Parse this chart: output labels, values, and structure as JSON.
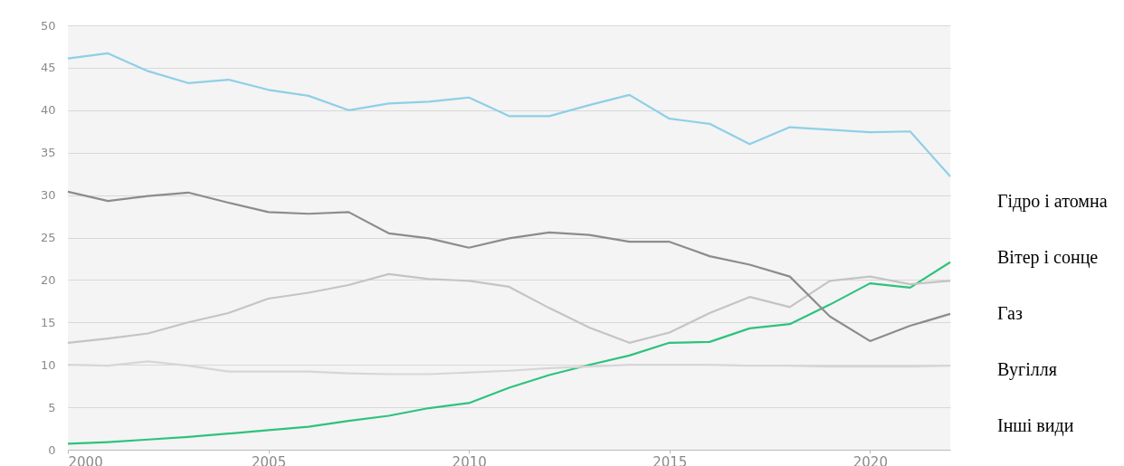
{
  "chart_data": {
    "type": "line",
    "x": [
      2000,
      2001,
      2002,
      2003,
      2004,
      2005,
      2006,
      2007,
      2008,
      2009,
      2010,
      2011,
      2012,
      2013,
      2014,
      2015,
      2016,
      2017,
      2018,
      2019,
      2020,
      2021,
      2022
    ],
    "series": [
      {
        "name": "Гідро і атомна",
        "color": "#8fcfe8",
        "values": [
          46.1,
          46.7,
          44.6,
          43.2,
          43.6,
          42.4,
          41.7,
          40.0,
          40.8,
          41.0,
          41.5,
          39.3,
          39.3,
          40.6,
          41.8,
          39.0,
          38.4,
          36.0,
          38.0,
          37.7,
          37.4,
          37.5,
          32.2
        ]
      },
      {
        "name": "Вітер і сонце",
        "color": "#2ec27e",
        "values": [
          0.7,
          0.9,
          1.2,
          1.5,
          1.9,
          2.3,
          2.7,
          3.4,
          4.0,
          4.9,
          5.5,
          7.3,
          8.8,
          10.0,
          11.1,
          12.6,
          12.7,
          14.3,
          14.8,
          17.1,
          19.6,
          19.1,
          22.1
        ]
      },
      {
        "name": "Газ",
        "color": "#c4c4c4",
        "values": [
          12.6,
          13.1,
          13.7,
          15.0,
          16.1,
          17.8,
          18.5,
          19.4,
          20.7,
          20.1,
          19.9,
          19.2,
          16.7,
          14.4,
          12.6,
          13.8,
          16.1,
          18.0,
          16.8,
          19.9,
          20.4,
          19.5,
          19.9
        ]
      },
      {
        "name": "Вугілля",
        "color": "#8c8c8c",
        "values": [
          30.4,
          29.3,
          29.9,
          30.3,
          29.1,
          28.0,
          27.8,
          28.0,
          25.5,
          24.9,
          23.8,
          24.9,
          25.6,
          25.3,
          24.5,
          24.5,
          22.8,
          21.8,
          20.4,
          15.7,
          12.8,
          14.6,
          16.0
        ]
      },
      {
        "name": "Інші види",
        "color": "#d6d6d6",
        "values": [
          10.0,
          9.9,
          10.4,
          9.9,
          9.2,
          9.2,
          9.2,
          9.0,
          8.9,
          8.9,
          9.1,
          9.3,
          9.6,
          9.8,
          10.0,
          10.0,
          10.0,
          9.9,
          9.9,
          9.8,
          9.8,
          9.8,
          9.9
        ]
      }
    ],
    "xlim": [
      2000,
      2022
    ],
    "xticks": [
      2000,
      2005,
      2010,
      2015,
      2020
    ],
    "ylim": [
      0,
      50
    ],
    "yticks": [
      0,
      5,
      10,
      15,
      20,
      25,
      30,
      35,
      40,
      45,
      50
    ],
    "grid": "y",
    "legend": "right",
    "marker": "none",
    "line_style": "solid"
  }
}
